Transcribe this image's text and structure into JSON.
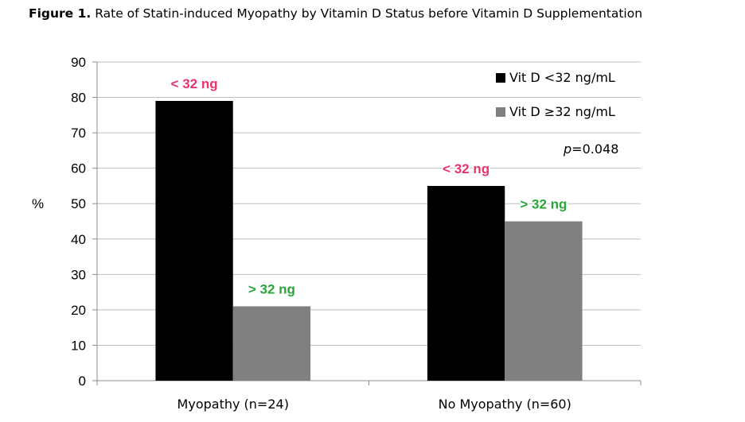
{
  "title": {
    "label": "Figure 1.",
    "text": "Rate of Statin-induced Myopathy by Vitamin D Status before Vitamin D Supplementation"
  },
  "chart_data": {
    "type": "bar",
    "ylabel": "%",
    "xlabel": "",
    "ylim": [
      0,
      90
    ],
    "yticks": [
      0,
      10,
      20,
      30,
      40,
      50,
      60,
      70,
      80,
      90
    ],
    "grid": true,
    "legend_position": "top-right",
    "categories": [
      "Myopathy (n=24)",
      "No Myopathy (n=60)"
    ],
    "series": [
      {
        "name": "Vit D <32 ng/mL",
        "color": "#000000",
        "values": [
          79,
          55
        ]
      },
      {
        "name": "Vit D ≥32 ng/mL",
        "color": "#808080",
        "values": [
          21,
          45
        ]
      }
    ],
    "bar_annotations": [
      [
        "< 32 ng",
        "< 32 ng"
      ],
      [
        "> 32 ng",
        "> 32 ng"
      ]
    ],
    "annotation_colors": [
      "#e8336b",
      "#2aa53a"
    ],
    "pvalue": {
      "symbol": "p",
      "text": "=0.048"
    }
  }
}
